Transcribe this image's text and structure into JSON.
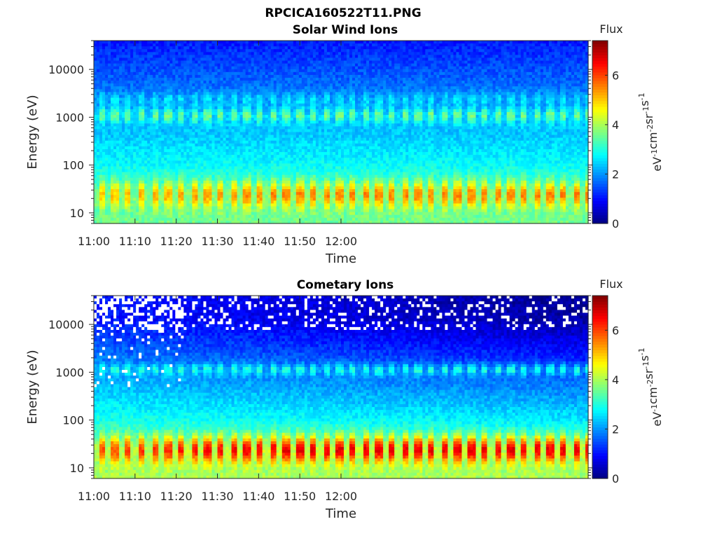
{
  "figure_title": "RPCICA160522T11.PNG",
  "chart_data": [
    {
      "type": "heatmap",
      "title": "Solar Wind Ions",
      "xlabel": "Time",
      "ylabel": "Energy (eV)",
      "x_ticks": [
        "11:00",
        "11:10",
        "11:20",
        "11:30",
        "11:40",
        "11:50",
        "12:00"
      ],
      "x_range": [
        "11:00",
        "12:00"
      ],
      "y_scale": "log",
      "y_ticks": [
        "10",
        "100",
        "1000",
        "10000"
      ],
      "y_range": [
        6,
        40000
      ],
      "colorbar": {
        "label_top": "Flux",
        "label": "eV-1cm-2sr-1s-1",
        "ticks": [
          "0",
          "2",
          "4",
          "6"
        ],
        "range": [
          0,
          7.4
        ],
        "colormap": "jet"
      },
      "bands": [
        {
          "energy_eV": [
            14,
            40
          ],
          "flux_peak": 5.5,
          "pulse_period_min": 3.2
        },
        {
          "energy_eV": [
            800,
            1500
          ],
          "flux_peak": 3.6,
          "pulse_period_min": 3.2
        },
        {
          "energy_eV": [
            1800,
            3000
          ],
          "flux_peak": 2.6,
          "pulse_period_min": 3.2
        }
      ]
    },
    {
      "type": "heatmap",
      "title": "Cometary Ions",
      "xlabel": "Time",
      "ylabel": "Energy (eV)",
      "x_ticks": [
        "11:00",
        "11:10",
        "11:20",
        "11:30",
        "11:40",
        "11:50",
        "12:00"
      ],
      "x_range": [
        "11:00",
        "12:00"
      ],
      "y_scale": "log",
      "y_ticks": [
        "10",
        "100",
        "1000",
        "10000"
      ],
      "y_range": [
        6,
        40000
      ],
      "colorbar": {
        "label_top": "Flux",
        "label": "eV-1cm-2sr-1s-1",
        "ticks": [
          "0",
          "2",
          "4",
          "6"
        ],
        "range": [
          0,
          7.4
        ],
        "colormap": "jet"
      },
      "bands": [
        {
          "energy_eV": [
            14,
            40
          ],
          "flux_peak": 6.6,
          "pulse_period_min": 3.2
        },
        {
          "energy_eV": [
            900,
            1400
          ],
          "flux_peak": 3.0,
          "pulse_period_min": 3.2
        }
      ],
      "missing_data": "sparse white pixels above ~200 eV, dense above ~8000 eV"
    }
  ]
}
